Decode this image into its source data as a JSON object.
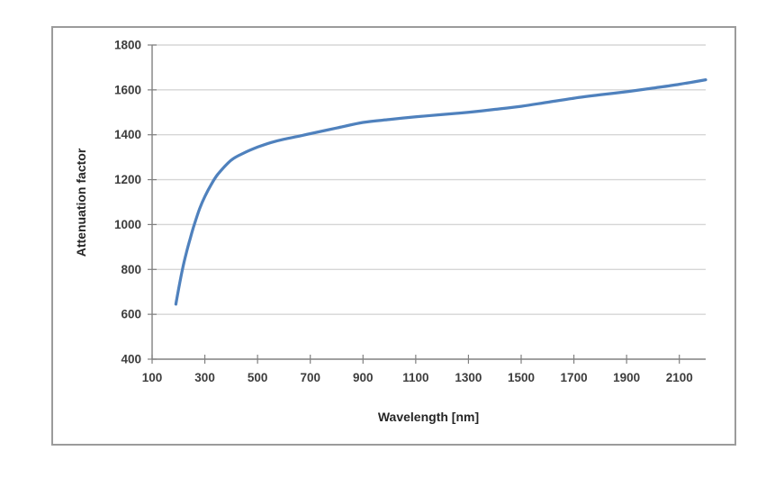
{
  "figure": {
    "background": "#ffffff",
    "frame_border_color": "#9b9b9b"
  },
  "chart_data": {
    "type": "line",
    "title": "",
    "xlabel": "Wavelength [nm]",
    "ylabel": "Attenuation factor",
    "xlim": [
      100,
      2200
    ],
    "ylim": [
      400,
      1800
    ],
    "x_ticks": [
      100,
      300,
      500,
      700,
      900,
      1100,
      1300,
      1500,
      1700,
      1900,
      2100
    ],
    "y_ticks": [
      400,
      600,
      800,
      1000,
      1200,
      1400,
      1600,
      1800
    ],
    "grid": "horizontal",
    "legend": "none",
    "line_color": "#4F81BD",
    "gridline_color": "#D6D6D6",
    "axis_color": "#808080",
    "tick_label_color": "#3d3d3d",
    "axis_title_color": "#262626",
    "series": [
      {
        "name": "Attenuation factor",
        "points": [
          [
            190,
            645
          ],
          [
            200,
            710
          ],
          [
            215,
            800
          ],
          [
            230,
            875
          ],
          [
            245,
            940
          ],
          [
            260,
            1000
          ],
          [
            280,
            1070
          ],
          [
            300,
            1125
          ],
          [
            325,
            1180
          ],
          [
            350,
            1225
          ],
          [
            400,
            1287
          ],
          [
            450,
            1320
          ],
          [
            500,
            1345
          ],
          [
            550,
            1365
          ],
          [
            600,
            1380
          ],
          [
            650,
            1392
          ],
          [
            700,
            1405
          ],
          [
            800,
            1430
          ],
          [
            900,
            1455
          ],
          [
            1000,
            1468
          ],
          [
            1100,
            1480
          ],
          [
            1200,
            1490
          ],
          [
            1300,
            1500
          ],
          [
            1400,
            1513
          ],
          [
            1500,
            1527
          ],
          [
            1600,
            1545
          ],
          [
            1700,
            1563
          ],
          [
            1800,
            1578
          ],
          [
            1900,
            1592
          ],
          [
            2000,
            1608
          ],
          [
            2100,
            1625
          ],
          [
            2200,
            1645
          ]
        ]
      }
    ]
  }
}
